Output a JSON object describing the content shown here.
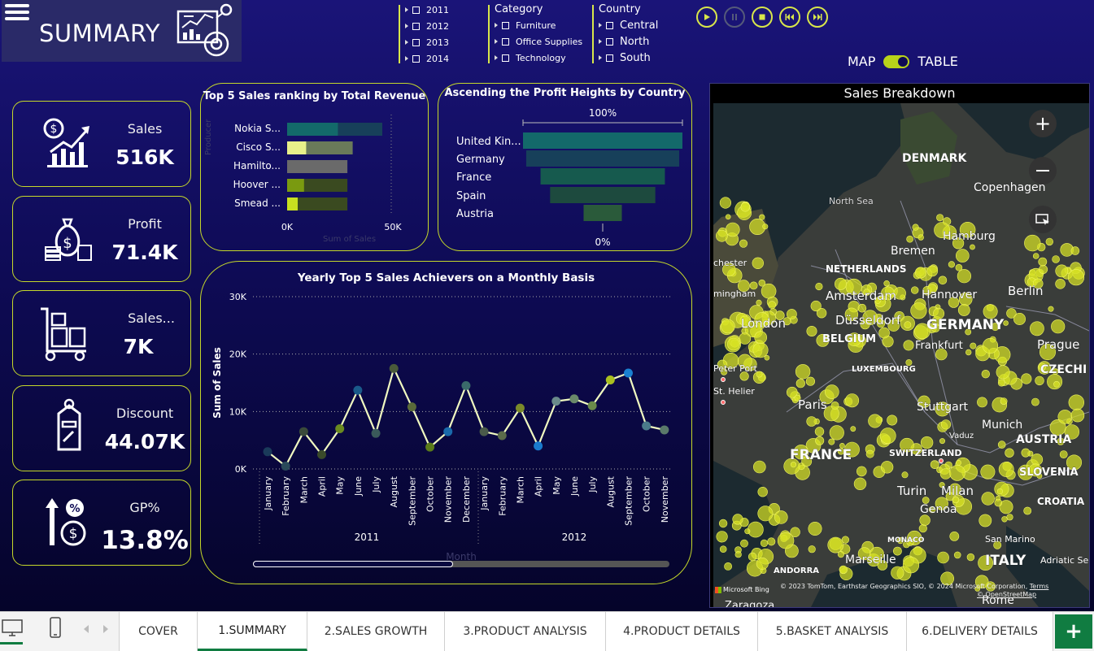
{
  "header": {
    "title": "SUMMARY"
  },
  "slicers": {
    "year": {
      "items": [
        "2011",
        "2012",
        "2013",
        "2014"
      ]
    },
    "category": {
      "title": "Category",
      "items": [
        "Furniture",
        "Office Supplies",
        "Technology"
      ]
    },
    "country": {
      "title": "Country",
      "items": [
        "Central",
        "North",
        "South"
      ]
    }
  },
  "playback": {
    "buttons": [
      "play",
      "pause",
      "stop",
      "previous",
      "next"
    ]
  },
  "view_toggle": {
    "left_label": "MAP",
    "right_label": "TABLE",
    "state": "on"
  },
  "kpis": [
    {
      "label": "Sales",
      "value": "516K",
      "icon": "sales-growth-icon"
    },
    {
      "label": "Profit",
      "value": "71.4K",
      "icon": "money-bag-icon"
    },
    {
      "label": "Sales...",
      "value": "7K",
      "icon": "hand-truck-icon"
    },
    {
      "label": "Discount",
      "value": "44.07K",
      "icon": "price-tag-icon"
    },
    {
      "label": "GP%",
      "value": "13.8%",
      "icon": "gross-profit-icon"
    }
  ],
  "colors": {
    "accent": "#c5d82a",
    "background": "#0e0b55",
    "teal": "#136a6a",
    "dark_teal": "#17405a"
  },
  "top5": {
    "title": "Top 5 Sales ranking by Total Revenue",
    "xlabel": "Sum of Sales",
    "ylabel": "Producer",
    "ticks": [
      "0K",
      "50K"
    ]
  },
  "funnel": {
    "title": "Ascending the Profit Heights by Country",
    "top_label": "100%",
    "bottom_label": "0%"
  },
  "monthly": {
    "title": "Yearly Top 5 Sales Achievers on a Monthly Basis",
    "ylabel": "Sum of Sales",
    "xlabel": "Month",
    "yticks": [
      "30K",
      "20K",
      "10K",
      "0K"
    ],
    "years": [
      "2011",
      "2012"
    ]
  },
  "map": {
    "title": "Sales Breakdown",
    "labels": [
      "DENMARK",
      "Copenhagen",
      "North Sea",
      "Hamburg",
      "Bremen",
      "NETHERLANDS",
      "Amsterdam",
      "Hannover",
      "Berlin",
      "London",
      "Düsseldorf",
      "GERMANY",
      "BELGIUM",
      "Frankfurt",
      "Prague",
      "CZECHI",
      "LUXEMBOURG",
      "Peter Port",
      "St. Helier",
      "Paris",
      "Stuttgart",
      "Munich",
      "Vaduz",
      "FRANCE",
      "SWITZERLAND",
      "AUSTRIA",
      "SLOVENIA",
      "Turin",
      "Milan",
      "Genoa",
      "CROATIA",
      "MONACO",
      "San Marino",
      "ITALY",
      "Marseille",
      "Adriatic Sea",
      "ANDORRA",
      "Zaragoza",
      "Rome",
      "chester",
      "mingham"
    ],
    "attribution": "© 2023 TomTom, Earthstar Geographics SIO, © 2024 Microsoft Corporation,",
    "terms": "Terms",
    "osm": "© OpenStreetMap",
    "bing": "Microsoft Bing"
  },
  "chart_data": [
    {
      "type": "bar",
      "title": "Top 5 Sales ranking by Total Revenue",
      "categories": [
        "Nokia S...",
        "Cisco S...",
        "Hamilto...",
        "Hoover ...",
        "Smead ..."
      ],
      "series": [
        {
          "values": [
            45000,
            31000,
            28500,
            28500,
            28500
          ]
        }
      ],
      "highlight_values": [
        24000,
        9000,
        0,
        8000,
        5000
      ],
      "xlim": [
        0,
        52000
      ],
      "xlabel": "Sum of Sales",
      "ylabel": "Producer"
    },
    {
      "type": "bar",
      "subtype": "funnel",
      "title": "Ascending the Profit Heights by Country",
      "categories": [
        "United Kin...",
        "Germany",
        "France",
        "Spain",
        "Austria"
      ],
      "values": [
        100,
        96,
        78,
        66,
        24
      ]
    },
    {
      "type": "line",
      "title": "Yearly Top 5 Sales Achievers on a Monthly Basis",
      "categories": [
        "January",
        "February",
        "March",
        "April",
        "May",
        "June",
        "July",
        "August",
        "September",
        "October",
        "November",
        "December",
        "January",
        "February",
        "March",
        "April",
        "May",
        "June",
        "July",
        "August",
        "September",
        "October",
        "November"
      ],
      "groups": [
        {
          "name": "2011",
          "count": 12
        },
        {
          "name": "2012",
          "count": 11
        }
      ],
      "values": [
        3000,
        500,
        6500,
        2500,
        7000,
        13700,
        6200,
        17500,
        10800,
        3800,
        6500,
        14500,
        6500,
        5800,
        10600,
        4000,
        11800,
        12200,
        11000,
        15500,
        16700,
        7500,
        6800
      ],
      "ylim": [
        0,
        30000
      ],
      "xlabel": "Month",
      "ylabel": "Sum of Sales"
    }
  ],
  "tabs": {
    "items": [
      "COVER",
      "1.SUMMARY",
      "2.SALES GROWTH",
      "3.PRODUCT ANALYSIS",
      "4.PRODUCT DETAILS",
      "5.BASKET ANALYSIS",
      "6.DELIVERY DETAILS"
    ],
    "active": "1.SUMMARY",
    "add_label": "+"
  }
}
